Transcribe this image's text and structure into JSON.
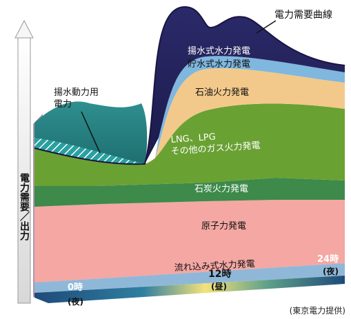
{
  "diagram": {
    "curve_label": "電力需要曲線",
    "y_axis_label": "電力需要／出力",
    "pumping_label_line1": "揚水動力用",
    "pumping_label_line2": "電力",
    "layers": [
      {
        "id": "pumped-storage",
        "label": "揚水式水力発電",
        "color": "#2a2a6e"
      },
      {
        "id": "reservoir-hydro",
        "label": "貯水式水力発電",
        "color": "#7fb7df"
      },
      {
        "id": "oil",
        "label": "石油火力発電",
        "color": "#f2c98a"
      },
      {
        "id": "lng",
        "label_line1": "LNG、LPG",
        "label_line2": "その他のガス火力発電",
        "color": "#6aa133"
      },
      {
        "id": "coal",
        "label": "石炭火力発電",
        "color": "#3d8a4a"
      },
      {
        "id": "nuclear",
        "label": "原子力発電",
        "color": "#f4a7a3"
      },
      {
        "id": "run-of-river",
        "label": "流れ込み式水力発電",
        "color": "#8fb8d8"
      }
    ],
    "time_axis": {
      "start": {
        "time": "0時",
        "period": "(夜)"
      },
      "mid": {
        "time": "12時",
        "period": "(昼)"
      },
      "end": {
        "time": "24時",
        "period": "(夜)"
      }
    },
    "credit": "(東京電力提供)"
  }
}
